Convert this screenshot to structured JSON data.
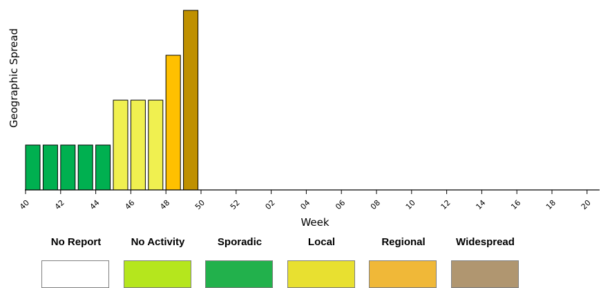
{
  "chart_data": {
    "type": "bar",
    "xlabel": "Week",
    "ylabel": "Geographic Spread",
    "x_ticks": [
      "40",
      "42",
      "44",
      "46",
      "48",
      "50",
      "52",
      "02",
      "04",
      "06",
      "08",
      "10",
      "12",
      "14",
      "16",
      "18",
      "20"
    ],
    "weeks": [
      "40",
      "41",
      "42",
      "43",
      "44",
      "45",
      "46",
      "47",
      "48",
      "49"
    ],
    "levels": [
      1,
      1,
      1,
      1,
      1,
      2,
      2,
      2,
      3,
      4
    ],
    "level_colors": {
      "1": "#00b050",
      "2": "#f0f050",
      "3": "#ffc000",
      "4": "#bf9000"
    },
    "ylim": [
      0,
      4
    ],
    "grid": false
  },
  "legend": [
    {
      "label": "No Report",
      "color": "#ffffff"
    },
    {
      "label": "No Activity",
      "color": "#b5e61d"
    },
    {
      "label": "Sporadic",
      "color": "#22b14c"
    },
    {
      "label": "Local",
      "color": "#e8e030"
    },
    {
      "label": "Regional",
      "color": "#f0b838"
    },
    {
      "label": "Widespread",
      "color": "#b09670"
    }
  ]
}
